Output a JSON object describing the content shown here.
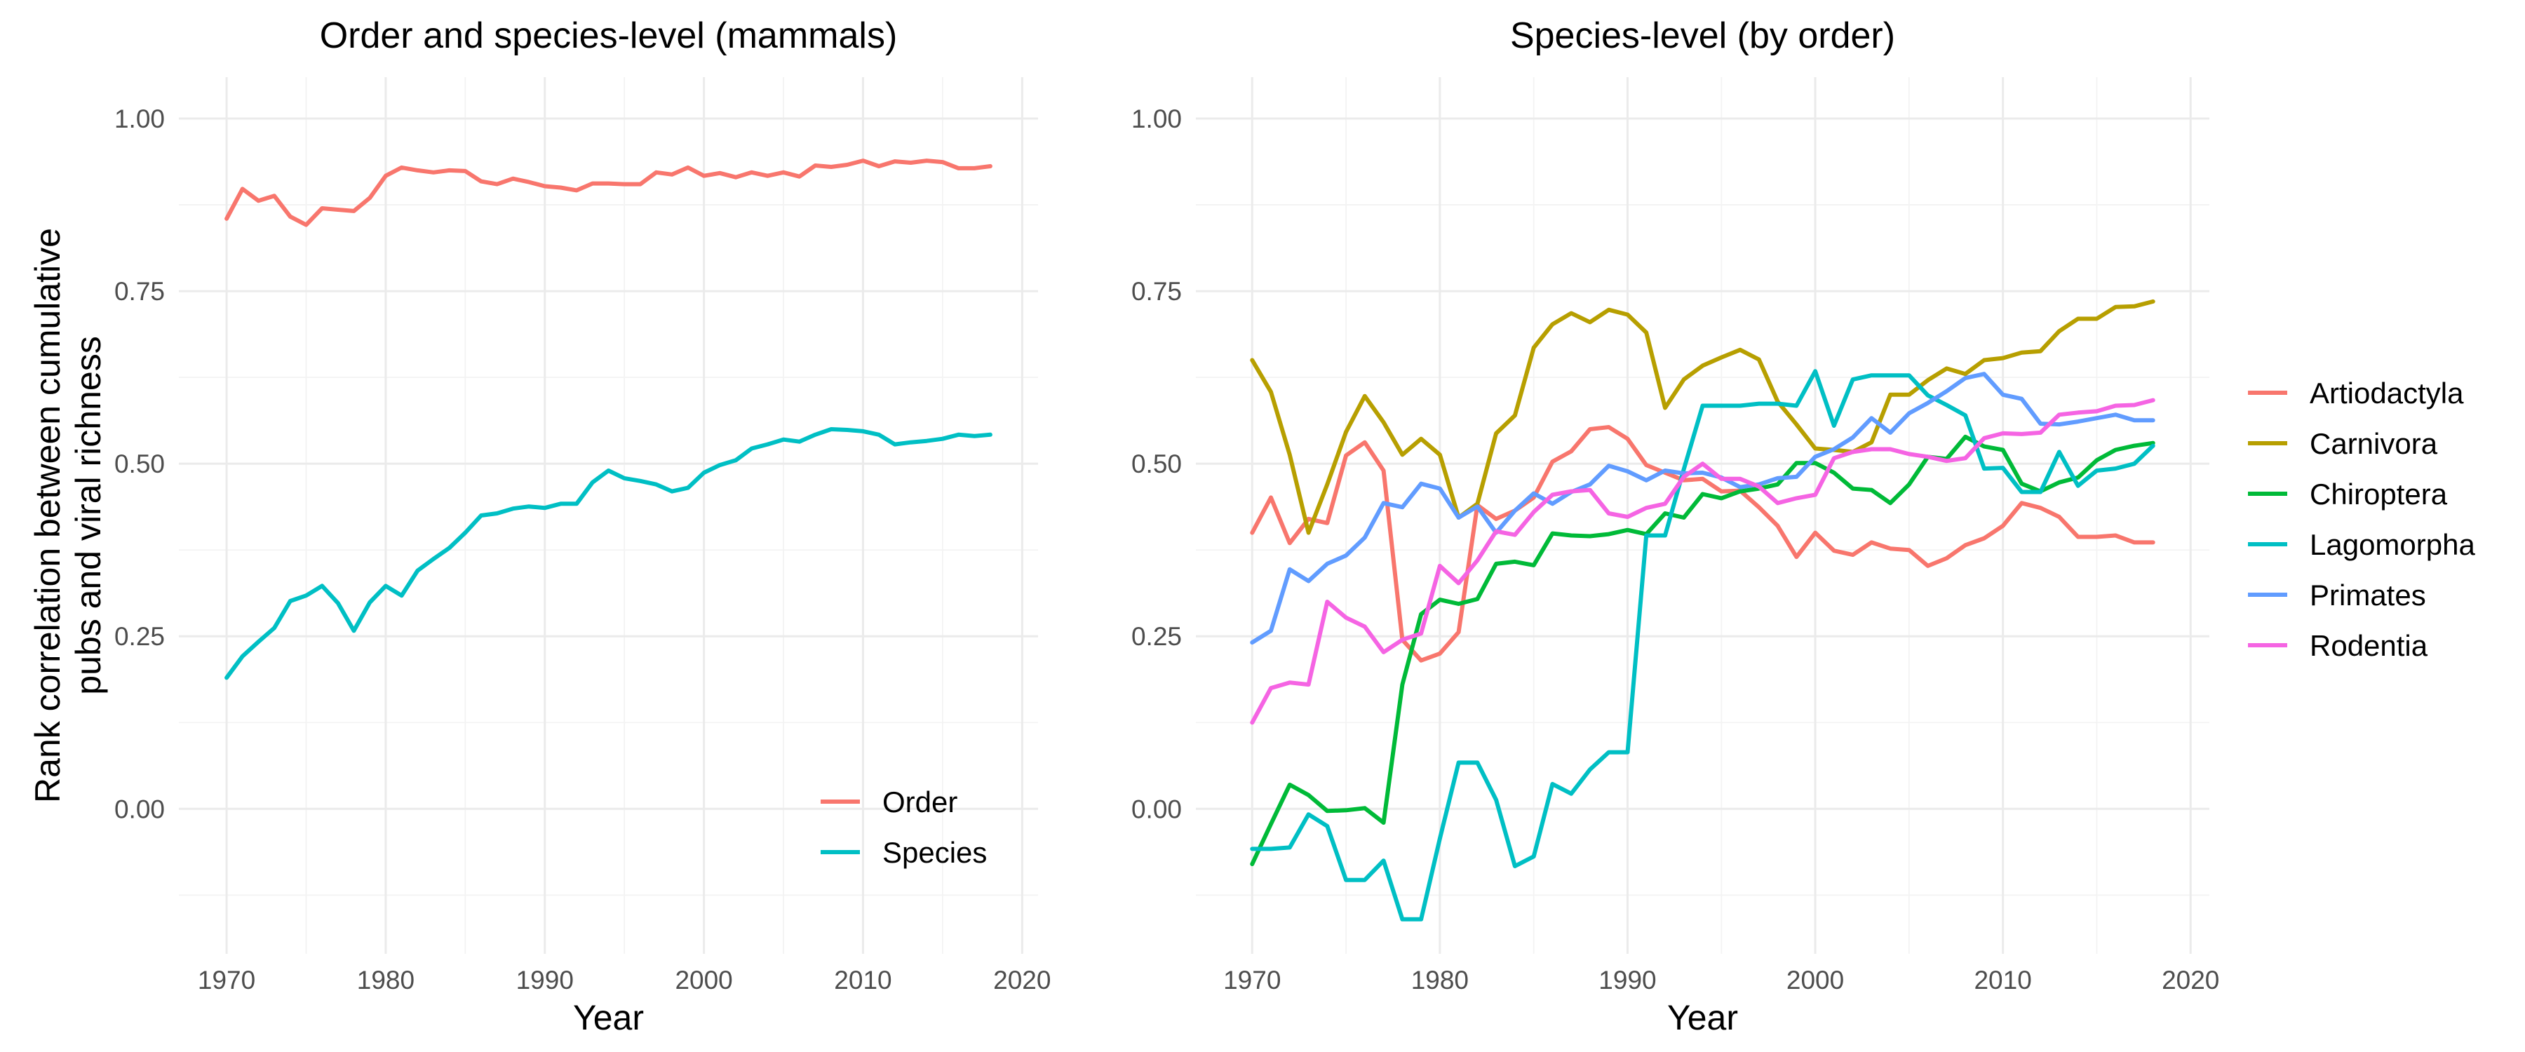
{
  "ylabel": "Rank correlation between cumulative\npubs and viral richness",
  "chart_data": [
    {
      "type": "line",
      "title": "Order and species-level (mammals)",
      "xlabel": "Year",
      "ylabel": "Rank correlation between cumulative pubs and viral richness",
      "xlim": [
        1967,
        2021
      ],
      "ylim": [
        -0.21,
        1.06
      ],
      "xticks": [
        1970,
        1980,
        1990,
        2000,
        2010,
        2020
      ],
      "xtick_labels": [
        "1970",
        "1980",
        "1990",
        "2000",
        "2010",
        "2020"
      ],
      "yticks": [
        0,
        0.25,
        0.5,
        0.75,
        1
      ],
      "ytick_labels": [
        "0.00",
        "0.25",
        "0.50",
        "0.75",
        "1.00"
      ],
      "grid": true,
      "legend": "inside-bottom-right",
      "x": [
        1970,
        1971,
        1972,
        1973,
        1974,
        1975,
        1976,
        1977,
        1978,
        1979,
        1980,
        1981,
        1982,
        1983,
        1984,
        1985,
        1986,
        1987,
        1988,
        1989,
        1990,
        1991,
        1992,
        1993,
        1994,
        1995,
        1996,
        1997,
        1998,
        1999,
        2000,
        2001,
        2002,
        2003,
        2004,
        2005,
        2006,
        2007,
        2008,
        2009,
        2010,
        2011,
        2012,
        2013,
        2014,
        2015,
        2016,
        2017,
        2018
      ],
      "series": [
        {
          "name": "Order",
          "color": "#F8766D",
          "values": [
            0.855,
            0.898,
            0.881,
            0.888,
            0.858,
            0.846,
            0.87,
            0.868,
            0.866,
            0.885,
            0.917,
            0.929,
            0.925,
            0.922,
            0.925,
            0.924,
            0.909,
            0.905,
            0.913,
            0.908,
            0.902,
            0.9,
            0.896,
            0.906,
            0.906,
            0.905,
            0.905,
            0.922,
            0.919,
            0.929,
            0.917,
            0.921,
            0.915,
            0.922,
            0.917,
            0.922,
            0.916,
            0.932,
            0.93,
            0.933,
            0.939,
            0.931,
            0.938,
            0.936,
            0.939,
            0.937,
            0.928,
            0.928,
            0.931
          ]
        },
        {
          "name": "Species",
          "color": "#00BFC4",
          "values": [
            0.19,
            0.221,
            0.242,
            0.262,
            0.301,
            0.309,
            0.323,
            0.298,
            0.258,
            0.299,
            0.323,
            0.309,
            0.345,
            0.362,
            0.378,
            0.4,
            0.425,
            0.428,
            0.435,
            0.438,
            0.436,
            0.442,
            0.442,
            0.473,
            0.49,
            0.479,
            0.475,
            0.47,
            0.46,
            0.465,
            0.487,
            0.498,
            0.505,
            0.522,
            0.528,
            0.535,
            0.532,
            0.542,
            0.55,
            0.549,
            0.547,
            0.542,
            0.528,
            0.531,
            0.533,
            0.536,
            0.542,
            0.54,
            0.542
          ]
        }
      ]
    },
    {
      "type": "line",
      "title": "Species-level (by order)",
      "xlabel": "Year",
      "ylabel": "",
      "xlim": [
        1967,
        2021
      ],
      "ylim": [
        -0.21,
        1.06
      ],
      "xticks": [
        1970,
        1980,
        1990,
        2000,
        2010,
        2020
      ],
      "xtick_labels": [
        "1970",
        "1980",
        "1990",
        "2000",
        "2010",
        "2020"
      ],
      "yticks": [
        0,
        0.25,
        0.5,
        0.75,
        1
      ],
      "ytick_labels": [
        "0.00",
        "0.25",
        "0.50",
        "0.75",
        "1.00"
      ],
      "grid": true,
      "legend": "right",
      "x": [
        1970,
        1971,
        1972,
        1973,
        1974,
        1975,
        1976,
        1977,
        1978,
        1979,
        1980,
        1981,
        1982,
        1983,
        1984,
        1985,
        1986,
        1987,
        1988,
        1989,
        1990,
        1991,
        1992,
        1993,
        1994,
        1995,
        1996,
        1997,
        1998,
        1999,
        2000,
        2001,
        2002,
        2003,
        2004,
        2005,
        2006,
        2007,
        2008,
        2009,
        2010,
        2011,
        2012,
        2013,
        2014,
        2015,
        2016,
        2017,
        2018
      ],
      "series": [
        {
          "name": "Artiodactyla",
          "color": "#F8766D",
          "values": [
            0.4,
            0.451,
            0.385,
            0.42,
            0.414,
            0.512,
            0.531,
            0.49,
            0.245,
            0.215,
            0.225,
            0.256,
            0.44,
            0.42,
            0.432,
            0.451,
            0.503,
            0.518,
            0.55,
            0.553,
            0.536,
            0.498,
            0.487,
            0.476,
            0.478,
            0.46,
            0.461,
            0.437,
            0.41,
            0.365,
            0.4,
            0.374,
            0.368,
            0.386,
            0.377,
            0.375,
            0.352,
            0.363,
            0.382,
            0.392,
            0.41,
            0.443,
            0.436,
            0.423,
            0.394,
            0.394,
            0.396,
            0.386,
            0.386
          ]
        },
        {
          "name": "Carnivora",
          "color": "#B79F00",
          "values": [
            0.65,
            0.604,
            0.513,
            0.4,
            0.47,
            0.546,
            0.598,
            0.56,
            0.513,
            0.536,
            0.513,
            0.422,
            0.442,
            0.544,
            0.57,
            0.668,
            0.702,
            0.718,
            0.705,
            0.723,
            0.716,
            0.69,
            0.581,
            0.622,
            0.642,
            0.654,
            0.665,
            0.651,
            0.59,
            0.557,
            0.522,
            0.52,
            0.517,
            0.531,
            0.6,
            0.6,
            0.621,
            0.638,
            0.63,
            0.65,
            0.653,
            0.661,
            0.663,
            0.692,
            0.71,
            0.71,
            0.727,
            0.728,
            0.735
          ]
        },
        {
          "name": "Chiroptera",
          "color": "#00BA38",
          "values": [
            -0.08,
            -0.022,
            0.035,
            0.02,
            -0.003,
            -0.002,
            0.001,
            -0.02,
            0.18,
            0.282,
            0.303,
            0.297,
            0.304,
            0.355,
            0.358,
            0.353,
            0.399,
            0.396,
            0.395,
            0.398,
            0.404,
            0.398,
            0.428,
            0.422,
            0.456,
            0.45,
            0.46,
            0.464,
            0.47,
            0.501,
            0.501,
            0.487,
            0.464,
            0.462,
            0.443,
            0.47,
            0.51,
            0.507,
            0.539,
            0.525,
            0.52,
            0.471,
            0.46,
            0.473,
            0.48,
            0.505,
            0.52,
            0.526,
            0.53
          ]
        },
        {
          "name": "Lagomorpha",
          "color": "#00BFC4",
          "values": [
            -0.058,
            -0.058,
            -0.056,
            -0.008,
            -0.025,
            -0.103,
            -0.103,
            -0.075,
            -0.16,
            -0.16,
            -0.043,
            0.067,
            0.067,
            0.013,
            -0.083,
            -0.069,
            0.036,
            0.022,
            0.057,
            0.082,
            0.082,
            0.396,
            0.396,
            0.492,
            0.584,
            0.584,
            0.584,
            0.587,
            0.587,
            0.584,
            0.634,
            0.555,
            0.622,
            0.628,
            0.628,
            0.628,
            0.599,
            0.585,
            0.57,
            0.493,
            0.494,
            0.459,
            0.459,
            0.517,
            0.468,
            0.49,
            0.493,
            0.5,
            0.526
          ]
        },
        {
          "name": "Primates",
          "color": "#619CFF",
          "values": [
            0.241,
            0.258,
            0.347,
            0.33,
            0.355,
            0.367,
            0.393,
            0.443,
            0.437,
            0.471,
            0.464,
            0.422,
            0.438,
            0.4,
            0.432,
            0.457,
            0.442,
            0.459,
            0.47,
            0.497,
            0.489,
            0.476,
            0.49,
            0.486,
            0.487,
            0.48,
            0.466,
            0.47,
            0.479,
            0.481,
            0.51,
            0.521,
            0.538,
            0.566,
            0.545,
            0.573,
            0.588,
            0.605,
            0.624,
            0.63,
            0.6,
            0.594,
            0.558,
            0.557,
            0.561,
            0.566,
            0.571,
            0.563,
            0.563
          ]
        },
        {
          "name": "Rodentia",
          "color": "#F564E3",
          "values": [
            0.125,
            0.175,
            0.183,
            0.18,
            0.3,
            0.277,
            0.264,
            0.227,
            0.245,
            0.254,
            0.352,
            0.327,
            0.36,
            0.402,
            0.397,
            0.43,
            0.455,
            0.46,
            0.462,
            0.428,
            0.423,
            0.436,
            0.442,
            0.481,
            0.5,
            0.478,
            0.478,
            0.467,
            0.443,
            0.45,
            0.455,
            0.508,
            0.517,
            0.521,
            0.521,
            0.514,
            0.51,
            0.504,
            0.508,
            0.537,
            0.544,
            0.543,
            0.545,
            0.571,
            0.574,
            0.576,
            0.584,
            0.585,
            0.592
          ]
        }
      ]
    }
  ]
}
